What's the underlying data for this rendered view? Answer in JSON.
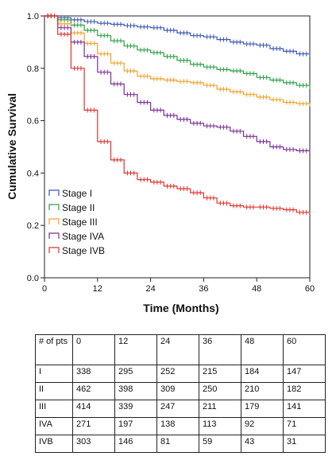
{
  "chart_data": {
    "type": "line",
    "title": "",
    "xlabel": "Time (Months)",
    "ylabel": "Cumulative Survival",
    "xlim": [
      0,
      60
    ],
    "ylim": [
      0,
      1.0
    ],
    "x_ticks": [
      "0",
      "12",
      "24",
      "36",
      "48",
      "60"
    ],
    "y_ticks": [
      "0.0",
      "0.2",
      "0.4",
      "0.6",
      "0.8",
      "1.0"
    ],
    "grid": false,
    "legend_position": "bottom-left",
    "series": [
      {
        "name": "Stage I",
        "color": "#3b55b4",
        "x": [
          0,
          3,
          6,
          9,
          12,
          15,
          18,
          21,
          24,
          27,
          30,
          33,
          36,
          39,
          42,
          45,
          48,
          51,
          54,
          57,
          60
        ],
        "y": [
          1.0,
          0.993,
          0.985,
          0.978,
          0.972,
          0.968,
          0.963,
          0.958,
          0.955,
          0.945,
          0.935,
          0.925,
          0.92,
          0.91,
          0.9,
          0.893,
          0.888,
          0.875,
          0.865,
          0.855,
          0.845
        ]
      },
      {
        "name": "Stage II",
        "color": "#2aa043",
        "x": [
          0,
          3,
          6,
          9,
          12,
          15,
          18,
          21,
          24,
          27,
          30,
          33,
          36,
          39,
          42,
          45,
          48,
          51,
          54,
          57,
          60
        ],
        "y": [
          1.0,
          0.985,
          0.965,
          0.945,
          0.925,
          0.905,
          0.885,
          0.87,
          0.86,
          0.845,
          0.83,
          0.815,
          0.805,
          0.795,
          0.79,
          0.78,
          0.765,
          0.755,
          0.745,
          0.735,
          0.72
        ]
      },
      {
        "name": "Stage III",
        "color": "#f2a12a",
        "x": [
          0,
          3,
          6,
          9,
          12,
          15,
          18,
          21,
          24,
          27,
          30,
          33,
          36,
          39,
          42,
          45,
          48,
          51,
          54,
          57,
          60
        ],
        "y": [
          1.0,
          0.97,
          0.935,
          0.895,
          0.855,
          0.82,
          0.79,
          0.77,
          0.76,
          0.755,
          0.75,
          0.745,
          0.735,
          0.72,
          0.71,
          0.7,
          0.69,
          0.68,
          0.67,
          0.665,
          0.655
        ]
      },
      {
        "name": "Stage IVA",
        "color": "#7a2f95",
        "x": [
          0,
          3,
          6,
          9,
          12,
          15,
          18,
          21,
          24,
          27,
          30,
          33,
          36,
          39,
          42,
          45,
          48,
          51,
          54,
          57,
          60
        ],
        "y": [
          1.0,
          0.955,
          0.9,
          0.845,
          0.785,
          0.74,
          0.7,
          0.67,
          0.64,
          0.62,
          0.605,
          0.59,
          0.58,
          0.575,
          0.56,
          0.54,
          0.52,
          0.5,
          0.49,
          0.485,
          0.48
        ]
      },
      {
        "name": "Stage IVB",
        "color": "#e2322f",
        "x": [
          0,
          3,
          6,
          9,
          12,
          15,
          18,
          21,
          24,
          27,
          30,
          33,
          36,
          39,
          42,
          45,
          48,
          51,
          54,
          57,
          60
        ],
        "y": [
          1.0,
          0.93,
          0.8,
          0.64,
          0.52,
          0.45,
          0.4,
          0.375,
          0.365,
          0.35,
          0.34,
          0.325,
          0.305,
          0.285,
          0.275,
          0.27,
          0.27,
          0.265,
          0.26,
          0.25,
          0.245
        ]
      }
    ]
  },
  "risk_table": {
    "header": [
      "# of pts",
      "0",
      "12",
      "24",
      "36",
      "48",
      "60"
    ],
    "rows": [
      [
        "I",
        "338",
        "295",
        "252",
        "215",
        "184",
        "147"
      ],
      [
        "II",
        "462",
        "398",
        "309",
        "250",
        "210",
        "182"
      ],
      [
        "III",
        "414",
        "339",
        "247",
        "211",
        "179",
        "141"
      ],
      [
        "IVA",
        "271",
        "197",
        "138",
        "113",
        "92",
        "71"
      ],
      [
        "IVB",
        "303",
        "146",
        "81",
        "59",
        "43",
        "31"
      ]
    ]
  }
}
